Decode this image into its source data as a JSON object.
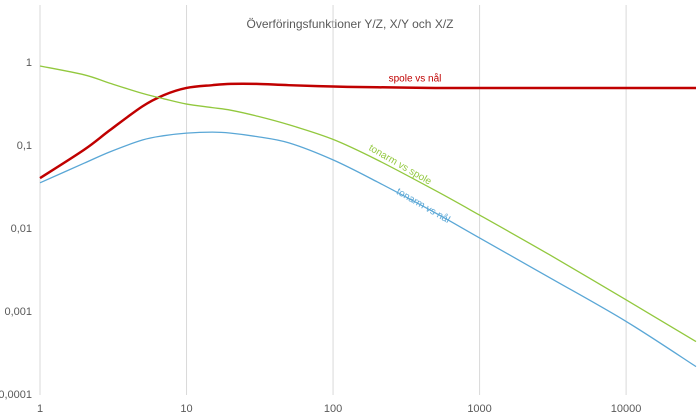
{
  "chart_data": {
    "type": "line",
    "title": "Överföringsfunktioner Y/Z, X/Y och X/Z",
    "x": [
      1,
      2,
      3,
      5,
      7,
      10,
      15,
      20,
      30,
      50,
      100,
      200,
      500,
      1000,
      3000,
      10000,
      30000
    ],
    "series": [
      {
        "name": "spole vs nål",
        "color": "#c00000",
        "values": [
          0.041,
          0.09,
          0.155,
          0.3,
          0.41,
          0.5,
          0.54,
          0.56,
          0.56,
          0.54,
          0.52,
          0.51,
          0.5,
          0.5,
          0.5,
          0.5,
          0.5
        ]
      },
      {
        "name": "tonarm vs spole",
        "color": "#92c83e",
        "values": [
          0.92,
          0.72,
          0.57,
          0.43,
          0.37,
          0.32,
          0.29,
          0.27,
          0.23,
          0.18,
          0.12,
          0.068,
          0.029,
          0.0147,
          0.0049,
          0.0014,
          0.00044
        ]
      },
      {
        "name": "tonarm vs nål",
        "color": "#5aa7d6",
        "values": [
          0.036,
          0.062,
          0.085,
          0.118,
          0.133,
          0.143,
          0.147,
          0.143,
          0.13,
          0.109,
          0.068,
          0.037,
          0.0156,
          0.0078,
          0.0026,
          0.00077,
          0.00022
        ]
      }
    ],
    "xlim": [
      1,
      30000
    ],
    "ylim": [
      0.0001,
      4
    ],
    "xticks": [
      1,
      10,
      100,
      1000,
      10000
    ],
    "yticks": [
      {
        "value": 0.0001,
        "label": "0,0001"
      },
      {
        "value": 0.001,
        "label": "0,001"
      },
      {
        "value": 0.01,
        "label": "0,01"
      },
      {
        "value": 0.1,
        "label": "0,1"
      },
      1
    ],
    "xscale": "log",
    "yscale": "log",
    "grid": "x"
  }
}
